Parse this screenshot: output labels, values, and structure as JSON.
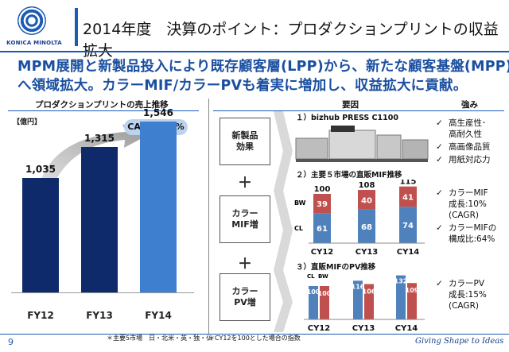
{
  "brand": {
    "name": "KONICA MINOLTA",
    "tagline": "Giving Shape to Ideas"
  },
  "header": {
    "title": "2014年度　決算のポイント：プロダクションプリントの収益拡大"
  },
  "headline": {
    "line1": "MPM展開と新製品投入により既存顧客層(LPP)から、新たな顧客基盤(MPP)",
    "line2": "へ領域拡大。カラーMIF/カラーPVも着実に増加し、収益拡大に貢献。"
  },
  "left": {
    "section_title": "プロダクションプリントの売上推移",
    "unit": "【億円】",
    "cagr": "CAGR　22%"
  },
  "chart_data": {
    "type": "bar",
    "categories": [
      "FY12",
      "FY13",
      "FY14"
    ],
    "values": [
      1035,
      1315,
      1546
    ],
    "value_labels": [
      "1,035",
      "1,315",
      "1,546"
    ],
    "title": "プロダクションプリントの売上推移",
    "ylabel": "【億円】",
    "annotation": "CAGR　22%",
    "ylim": [
      0,
      1800
    ],
    "colors": {
      "bars": "#0f2a6b",
      "last_bar": "#3f7fd0"
    }
  },
  "right": {
    "col_factor": "要因",
    "col_strength": "強み",
    "labels": [
      "新製品\n効果",
      "カラー\nMIF増",
      "カラー\nPV増"
    ],
    "plus": "＋",
    "section1": {
      "title": "１）bizhub PRESS C1100"
    },
    "section2": {
      "title": "２）主要５市場の直販MIF推移",
      "cats": [
        "CY12",
        "CY13",
        "CY14"
      ],
      "totals": [
        "100",
        "108",
        "115"
      ],
      "bw": [
        39,
        40,
        41
      ],
      "cl": [
        61,
        68,
        74
      ],
      "bw_label": "BW",
      "cl_label": "CL"
    },
    "section3": {
      "title": "３）直販MIFのPV推移",
      "cats": [
        "CY12",
        "CY13",
        "CY14"
      ],
      "cl_label": "CL",
      "bw_label": "BW",
      "cl": [
        100,
        116,
        132
      ],
      "bw": [
        100,
        106,
        109
      ]
    },
    "strengths": [
      [
        "高生産性･",
        "高耐久性",
        "高画像品質",
        "用紙対応力"
      ],
      [
        "カラーMIF",
        "成長:10%",
        "(CAGR)",
        "カラーMIFの",
        "構成比:64%"
      ],
      [
        "カラーPV",
        "成長:15%",
        "(CAGR)"
      ]
    ]
  },
  "footer": {
    "note1": "＊主要5市場　日・北米・英・独・仏",
    "note2": "＊CY12を100とした場合の指数",
    "page": "9"
  },
  "colors": {
    "brand_blue": "#1a5bb5",
    "bw_red": "#c0504d",
    "cl_blue": "#4f81bd"
  }
}
